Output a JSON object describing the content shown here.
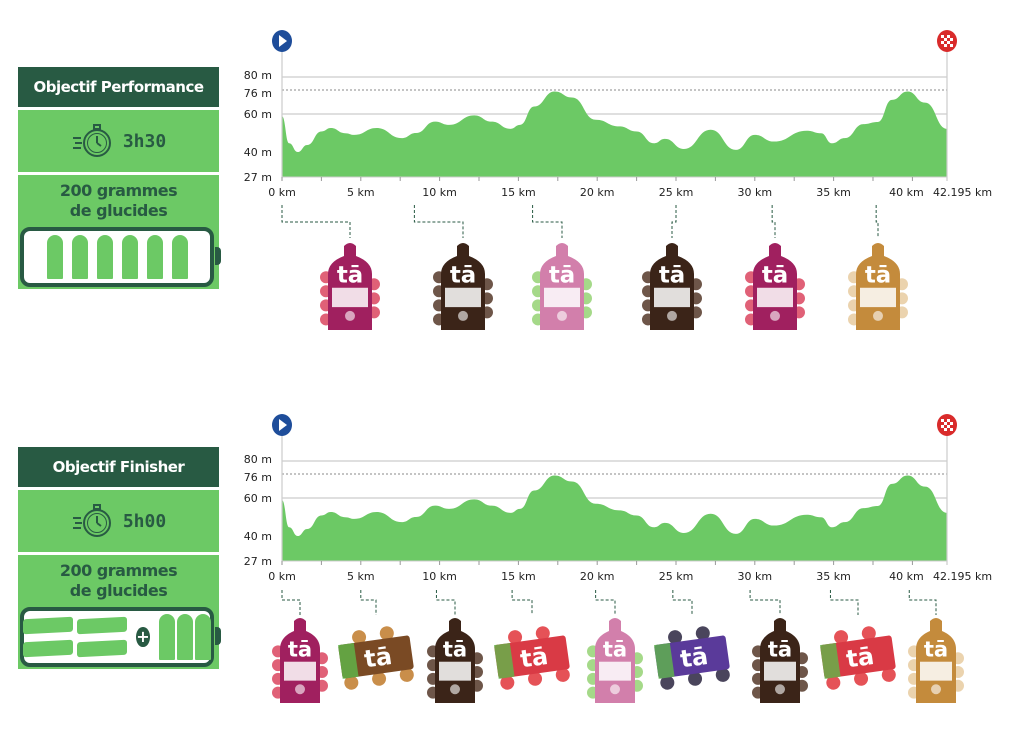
{
  "brand": "tā",
  "colors": {
    "dark_green": "#285a43",
    "green": "#6cc965",
    "start_marker": "#1e4d9a",
    "finish_marker": "#d92b2b",
    "grid": "#cccccc"
  },
  "sections": [
    {
      "title": "Objectif Performance",
      "time": "3h30",
      "time_icon": "stopwatch-icon",
      "carbs_line1": "200 grammes",
      "carbs_line2": "de glucides",
      "battery": {
        "bars": 0,
        "gels": 6
      },
      "products": [
        {
          "km": 0,
          "type": "gel",
          "color": "#a0205f",
          "fruit": "#d83a55"
        },
        {
          "km": 8.4,
          "type": "gel",
          "color": "#3b2418",
          "fruit": "#4a2c1c"
        },
        {
          "km": 15.9,
          "type": "gel",
          "color": "#d27fab",
          "fruit": "#8fd06b"
        },
        {
          "km": 25,
          "type": "gel",
          "color": "#3b2418",
          "fruit": "#4a2c1c"
        },
        {
          "km": 31.1,
          "type": "gel",
          "color": "#a0205f",
          "fruit": "#d83a55"
        },
        {
          "km": 37.7,
          "type": "gel",
          "color": "#c48b3c",
          "fruit": "#e6c89a"
        }
      ]
    },
    {
      "title": "Objectif Finisher",
      "time": "5h00",
      "time_icon": "stopwatch-icon",
      "carbs_line1": "200 grammes",
      "carbs_line2": "de glucides",
      "battery": {
        "bars": 4,
        "gels": 3,
        "plus": "+"
      },
      "products": [
        {
          "km": 0,
          "type": "gel",
          "color": "#a0205f",
          "fruit": "#d83a55"
        },
        {
          "km": 5,
          "type": "bar",
          "color": "#7a4a24",
          "fruit": "#c07a2a"
        },
        {
          "km": 9.8,
          "type": "gel",
          "color": "#3b2418",
          "fruit": "#4a2c1c"
        },
        {
          "km": 14.6,
          "type": "bar",
          "color": "#d93a45",
          "fruit": "#e0343a"
        },
        {
          "km": 19.9,
          "type": "gel",
          "color": "#d27fab",
          "fruit": "#8fd06b"
        },
        {
          "km": 24.8,
          "type": "bar",
          "color": "#5a3a9a",
          "fruit": "#2a2440"
        },
        {
          "km": 29.7,
          "type": "gel",
          "color": "#3b2418",
          "fruit": "#4a2c1c"
        },
        {
          "km": 34.8,
          "type": "bar",
          "color": "#d93a45",
          "fruit": "#e0343a"
        },
        {
          "km": 39.8,
          "type": "gel",
          "color": "#c48b3c",
          "fruit": "#e6c89a"
        }
      ]
    }
  ],
  "chart_data": [
    {
      "type": "area",
      "x_unit": "km",
      "y_unit": "m",
      "xlim": [
        0,
        42.195
      ],
      "ylim": [
        27,
        80
      ],
      "x_ticks": [
        "0 km",
        "5 km",
        "10 km",
        "15 km",
        "20 km",
        "25 km",
        "30 km",
        "35 km",
        "40 km",
        "42.195 km"
      ],
      "x_tick_values": [
        0,
        5,
        10,
        15,
        20,
        25,
        30,
        35,
        40,
        42.195
      ],
      "y_ticks": [
        "80 m",
        "76 m",
        "60 m",
        "40 m",
        "27 m"
      ],
      "y_tick_values": [
        80,
        76,
        60,
        40,
        27
      ],
      "reference_line": 76,
      "grid": true,
      "start_icon": "play-icon",
      "finish_icon": "checkered-flag-icon",
      "x": [
        0,
        0.45,
        1.0,
        1.6,
        2.5,
        3.1,
        4.0,
        4.6,
        6.0,
        7.6,
        8.5,
        9.7,
        10.6,
        12.2,
        13.3,
        14.5,
        15.1,
        16,
        17.3,
        18.4,
        19.9,
        21.4,
        22.5,
        23.6,
        24.3,
        25.5,
        27.2,
        28.8,
        30,
        31.2,
        33.3,
        34.2,
        34.9,
        35.7,
        36.9,
        37.8,
        38.7,
        39.7,
        40.8,
        42.195
      ],
      "y": [
        58.8,
        44.6,
        40,
        43.7,
        50.8,
        52.6,
        49.9,
        49,
        52.6,
        47.3,
        50,
        56,
        54.3,
        59.3,
        56,
        52.2,
        54.3,
        65,
        75,
        71,
        57,
        53.5,
        50.8,
        44.6,
        46.9,
        41.6,
        51.7,
        41.1,
        49,
        45.5,
        51.2,
        49.9,
        44.6,
        47.3,
        54.7,
        55.8,
        69.4,
        75,
        67.6,
        52.2
      ]
    },
    {
      "type": "area",
      "x_unit": "km",
      "y_unit": "m",
      "xlim": [
        0,
        42.195
      ],
      "ylim": [
        27,
        80
      ],
      "x_ticks": [
        "0 km",
        "5 km",
        "10 km",
        "15 km",
        "20 km",
        "25 km",
        "30 km",
        "35 km",
        "40 km",
        "42.195 km"
      ],
      "x_tick_values": [
        0,
        5,
        10,
        15,
        20,
        25,
        30,
        35,
        40,
        42.195
      ],
      "y_ticks": [
        "80 m",
        "76 m",
        "60 m",
        "40 m",
        "27 m"
      ],
      "y_tick_values": [
        80,
        76,
        60,
        40,
        27
      ],
      "reference_line": 76,
      "grid": true,
      "start_icon": "play-icon",
      "finish_icon": "checkered-flag-icon",
      "x": [
        0,
        0.45,
        1.0,
        1.6,
        2.5,
        3.1,
        4.0,
        4.6,
        6.0,
        7.6,
        8.5,
        9.7,
        10.6,
        12.2,
        13.3,
        14.5,
        15.1,
        16,
        17.3,
        18.4,
        19.9,
        21.4,
        22.5,
        23.6,
        24.3,
        25.5,
        27.2,
        28.8,
        30,
        31.2,
        33.3,
        34.2,
        34.9,
        35.7,
        36.9,
        37.8,
        38.7,
        39.7,
        40.8,
        42.195
      ],
      "y": [
        58.8,
        44.6,
        40,
        43.7,
        50.8,
        52.6,
        49.9,
        49,
        52.6,
        47.3,
        50,
        56,
        54.3,
        59.3,
        56,
        52.2,
        54.3,
        65,
        75,
        71,
        57,
        53.5,
        50.8,
        44.6,
        46.9,
        41.6,
        51.7,
        41.1,
        49,
        45.5,
        51.2,
        49.9,
        44.6,
        47.3,
        54.7,
        55.8,
        69.4,
        75,
        67.6,
        52.2
      ]
    }
  ]
}
